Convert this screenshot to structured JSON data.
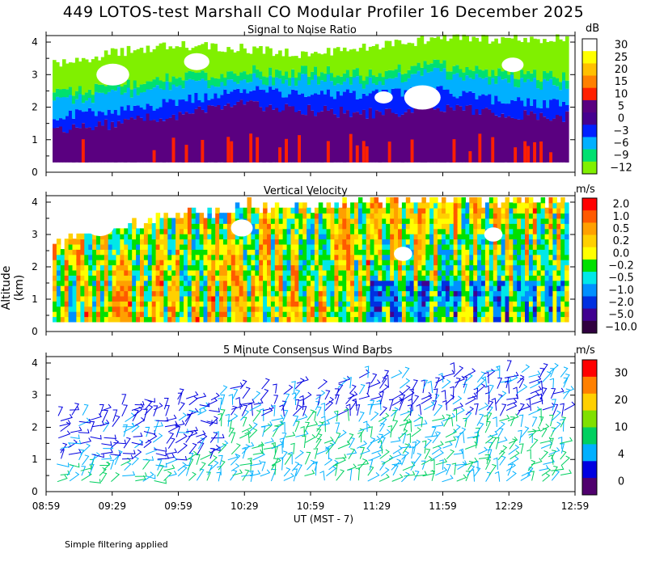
{
  "title": "449 LOTOS-test Marshall CO Modular Profiler 16 December 2025",
  "footer": "Simple filtering applied",
  "y_axis_label": "Altitude (km)",
  "x_axis_label": "UT  (MST - 7)",
  "chart_data": [
    {
      "type": "heatmap",
      "title": "Signal to Noise Ratio",
      "colorbar_unit": "dB",
      "colorbar_labels": [
        "30",
        "25",
        "20",
        "15",
        "10",
        "5",
        "0",
        "−3",
        "−6",
        "−9",
        "−12"
      ],
      "colors": [
        "#ffffff",
        "#ffff00",
        "#ffc000",
        "#ff8000",
        "#ff2000",
        "#5a0080",
        "#460090",
        "#0020ff",
        "#00b0ff",
        "#00e070",
        "#80f000"
      ],
      "x_tick_labels": [
        "08:59",
        "09:29",
        "09:59",
        "10:29",
        "10:59",
        "11:29",
        "11:59",
        "12:29",
        "12:59"
      ],
      "x_range_hours": [
        8.983,
        12.983
      ],
      "y_tick_labels": [
        "0",
        "1",
        "2",
        "3",
        "4"
      ],
      "ylim": [
        0,
        4.2
      ],
      "z_unit": "dB",
      "layers_km_by_time": {
        "times": [
          "08:59",
          "09:29",
          "09:59",
          "10:29",
          "10:59",
          "11:29",
          "11:59",
          "12:29",
          "12:59"
        ],
        "boundary_5dB": [
          1.3,
          1.5,
          1.8,
          2.1,
          1.9,
          1.8,
          2.0,
          1.8,
          1.7
        ],
        "boundary_0dB": [
          1.7,
          1.9,
          2.2,
          2.5,
          2.4,
          2.4,
          2.5,
          2.2,
          2.1
        ],
        "boundary_minus6dB": [
          2.4,
          2.7,
          2.9,
          3.1,
          3.1,
          3.0,
          3.3,
          3.1,
          2.9
        ],
        "data_top": [
          3.3,
          3.7,
          3.9,
          3.8,
          3.6,
          3.9,
          4.1,
          4.1,
          4.1
        ]
      }
    },
    {
      "type": "heatmap",
      "title": "Vertical Velocity",
      "colorbar_unit": "m/s",
      "colorbar_labels": [
        "2.0",
        "1.0",
        "0.5",
        "0.2",
        "0.0",
        "−0.2",
        "−0.5",
        "−1.0",
        "−2.0",
        "−5.0",
        "−10.0"
      ],
      "colors": [
        "#ff0000",
        "#ff5a00",
        "#ffa000",
        "#ffd000",
        "#ffff00",
        "#00e000",
        "#00e8e8",
        "#0090ff",
        "#0030e0",
        "#400090",
        "#300040"
      ],
      "x_tick_labels": [
        "08:59",
        "09:29",
        "09:59",
        "10:29",
        "10:59",
        "11:29",
        "11:59",
        "12:29",
        "12:59"
      ],
      "ylim": [
        0,
        4.2
      ],
      "y_tick_labels": [
        "0",
        "1",
        "2",
        "3",
        "4"
      ],
      "data_top_km": [
        2.6,
        3.2,
        3.5,
        3.8,
        3.8,
        3.9,
        4.0,
        4.0,
        4.0
      ]
    },
    {
      "type": "barbs",
      "title": "5 Minute Consensus Wind Barbs",
      "colorbar_unit": "m/s",
      "colorbar_labels": [
        "30",
        "20",
        "10",
        "4",
        "0"
      ],
      "colors": [
        "#ff0000",
        "#ff8000",
        "#ffd000",
        "#80e000",
        "#00d060",
        "#00b0ff",
        "#0000e0",
        "#50006e"
      ],
      "x_tick_labels": [
        "08:59",
        "09:29",
        "09:59",
        "10:29",
        "10:59",
        "11:29",
        "11:59",
        "12:29",
        "12:59"
      ],
      "y_tick_labels": [
        "0",
        "1",
        "2",
        "3",
        "4"
      ],
      "ylim": [
        0,
        4.2
      ]
    }
  ]
}
